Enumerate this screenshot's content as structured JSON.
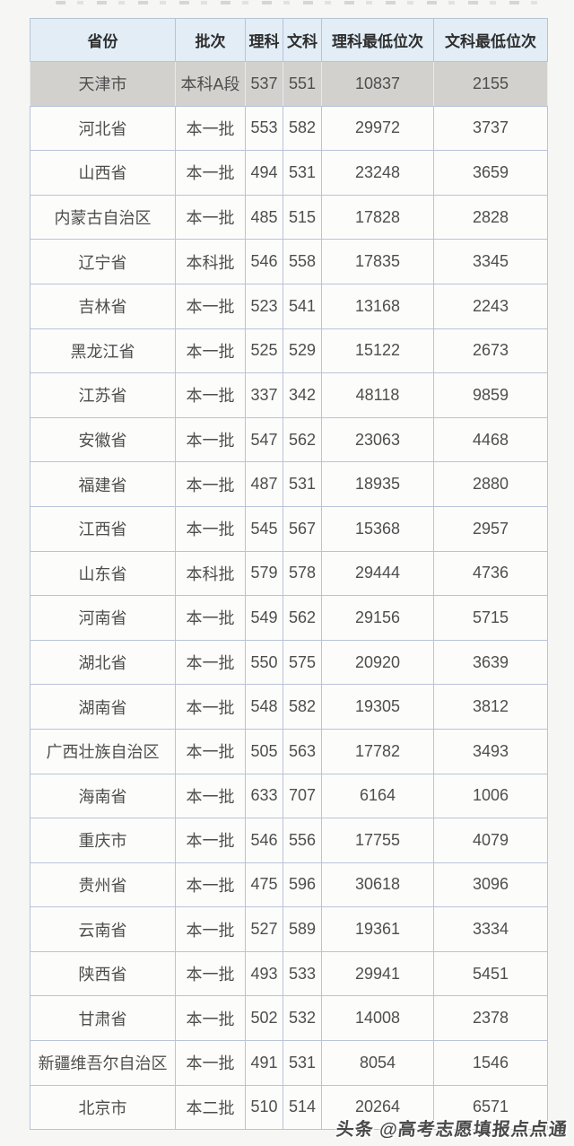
{
  "watermark": {
    "text": "头条 @高考志愿填报点点通"
  },
  "colors": {
    "header_bg": "#e2edf6",
    "highlight_row_bg": "#d2d1ce",
    "row_bg": "#fcfcfb",
    "border": "#b9c3d8",
    "header_text": "#2e2e2e",
    "cell_text": "#4e4e4e"
  },
  "chart_data": {
    "type": "table",
    "title": "",
    "columns": [
      "省份",
      "批次",
      "理科",
      "文科",
      "理科最低位次",
      "文科最低位次"
    ],
    "column_keys": [
      "province",
      "batch",
      "sci_score",
      "art_score",
      "sci_min_rank",
      "art_min_rank"
    ],
    "highlighted_row": 0,
    "rows": [
      [
        "天津市",
        "本科A段",
        "537",
        "551",
        "10837",
        "2155"
      ],
      [
        "河北省",
        "本一批",
        "553",
        "582",
        "29972",
        "3737"
      ],
      [
        "山西省",
        "本一批",
        "494",
        "531",
        "23248",
        "3659"
      ],
      [
        "内蒙古自治区",
        "本一批",
        "485",
        "515",
        "17828",
        "2828"
      ],
      [
        "辽宁省",
        "本科批",
        "546",
        "558",
        "17835",
        "3345"
      ],
      [
        "吉林省",
        "本一批",
        "523",
        "541",
        "13168",
        "2243"
      ],
      [
        "黑龙江省",
        "本一批",
        "525",
        "529",
        "15122",
        "2673"
      ],
      [
        "江苏省",
        "本一批",
        "337",
        "342",
        "48118",
        "9859"
      ],
      [
        "安徽省",
        "本一批",
        "547",
        "562",
        "23063",
        "4468"
      ],
      [
        "福建省",
        "本一批",
        "487",
        "531",
        "18935",
        "2880"
      ],
      [
        "江西省",
        "本一批",
        "545",
        "567",
        "15368",
        "2957"
      ],
      [
        "山东省",
        "本科批",
        "579",
        "578",
        "29444",
        "4736"
      ],
      [
        "河南省",
        "本一批",
        "549",
        "562",
        "29156",
        "5715"
      ],
      [
        "湖北省",
        "本一批",
        "550",
        "575",
        "20920",
        "3639"
      ],
      [
        "湖南省",
        "本一批",
        "548",
        "582",
        "19305",
        "3812"
      ],
      [
        "广西壮族自治区",
        "本一批",
        "505",
        "563",
        "17782",
        "3493"
      ],
      [
        "海南省",
        "本一批",
        "633",
        "707",
        "6164",
        "1006"
      ],
      [
        "重庆市",
        "本一批",
        "546",
        "556",
        "17755",
        "4079"
      ],
      [
        "贵州省",
        "本一批",
        "475",
        "596",
        "30618",
        "3096"
      ],
      [
        "云南省",
        "本一批",
        "527",
        "589",
        "19361",
        "3334"
      ],
      [
        "陕西省",
        "本一批",
        "493",
        "533",
        "29941",
        "5451"
      ],
      [
        "甘肃省",
        "本一批",
        "502",
        "532",
        "14008",
        "2378"
      ],
      [
        "新疆维吾尔自治区",
        "本一批",
        "491",
        "531",
        "8054",
        "1546"
      ],
      [
        "北京市",
        "本二批",
        "510",
        "514",
        "20264",
        "6571"
      ]
    ]
  }
}
